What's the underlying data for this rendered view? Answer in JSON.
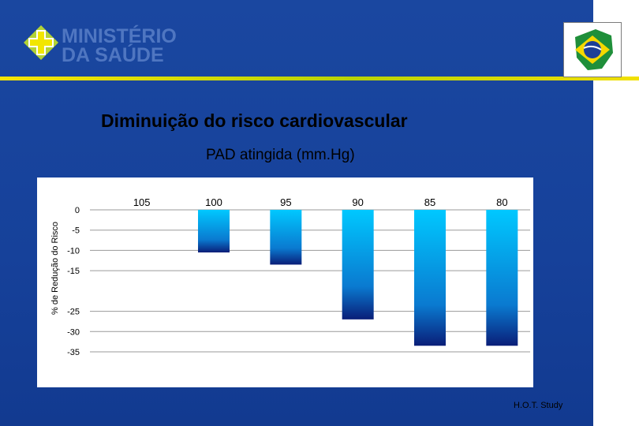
{
  "logo": {
    "line1": "MINISTÉRIO",
    "line2": "DA SAÚDE"
  },
  "flag_caption": [
    "",
    ""
  ],
  "title": "Diminuição do risco cardiovascular",
  "subtitle": "PAD atingida (mm.Hg)",
  "source": "H.O.T. Study",
  "colors": {
    "background": "#16429a",
    "bar_top": "#00c8ff",
    "bar_bottom": "#0a1e78",
    "rule": "#e6e100"
  },
  "chart_data": {
    "type": "bar",
    "categories": [
      "105",
      "100",
      "95",
      "90",
      "85",
      "80"
    ],
    "values": [
      0,
      -10.5,
      -13.5,
      -27,
      -33.5,
      -33.5
    ],
    "ylabel": "% de Redução do Risco",
    "xlabel": "PAD atingida (mm.Hg)",
    "ylim": [
      -35,
      0
    ],
    "yticks": [
      0,
      -5,
      -10,
      -15,
      -25,
      -30,
      -35
    ],
    "grid": true,
    "legend": "none"
  }
}
